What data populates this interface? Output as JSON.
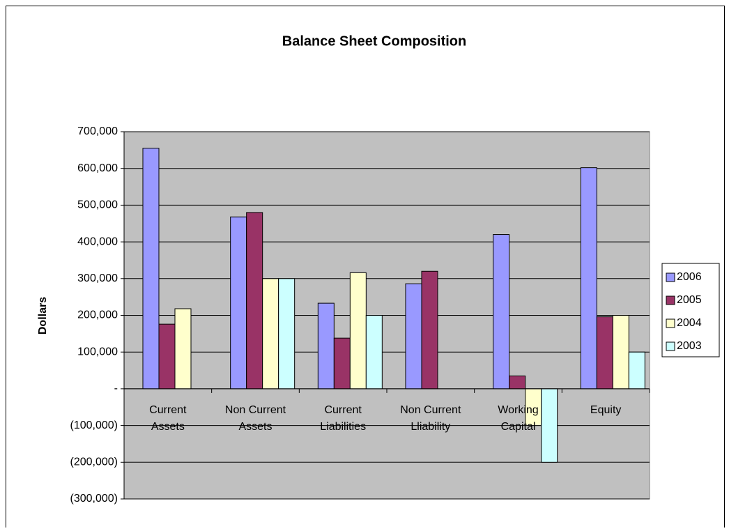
{
  "chart_data": {
    "type": "bar",
    "title": "Balance Sheet Composition",
    "y_label": "Dollars",
    "categories": [
      "Current Assets",
      "Non Current Assets",
      "Current Liabilities",
      "Non Current Lliability",
      "Working Capital",
      "Equity"
    ],
    "series": [
      {
        "name": "2006",
        "color": "#9999ff",
        "values": [
          655000,
          468000,
          233000,
          286000,
          420000,
          602000
        ]
      },
      {
        "name": "2005",
        "color": "#993366",
        "values": [
          176000,
          480000,
          138000,
          320000,
          35000,
          196000
        ]
      },
      {
        "name": "2004",
        "color": "#ffffcc",
        "values": [
          218000,
          300000,
          316000,
          null,
          -100000,
          200000
        ]
      },
      {
        "name": "2003",
        "color": "#ccffff",
        "values": [
          null,
          300000,
          200000,
          null,
          -200000,
          100000
        ]
      }
    ],
    "ylim": [
      -300000,
      700000
    ],
    "yticks": [
      {
        "value": -300000,
        "label": "(300,000)"
      },
      {
        "value": -200000,
        "label": "(200,000)"
      },
      {
        "value": -100000,
        "label": "(100,000)"
      },
      {
        "value": 0,
        "label": "-"
      },
      {
        "value": 100000,
        "label": "100,000"
      },
      {
        "value": 200000,
        "label": "200,000"
      },
      {
        "value": 300000,
        "label": "300,000"
      },
      {
        "value": 400000,
        "label": "400,000"
      },
      {
        "value": 500000,
        "label": "500,000"
      },
      {
        "value": 600000,
        "label": "600,000"
      },
      {
        "value": 700000,
        "label": "700,000"
      }
    ],
    "negative_tick_color": "#ff0000",
    "plot_background": "#c0c0c0",
    "grid": true,
    "legend": "right"
  }
}
